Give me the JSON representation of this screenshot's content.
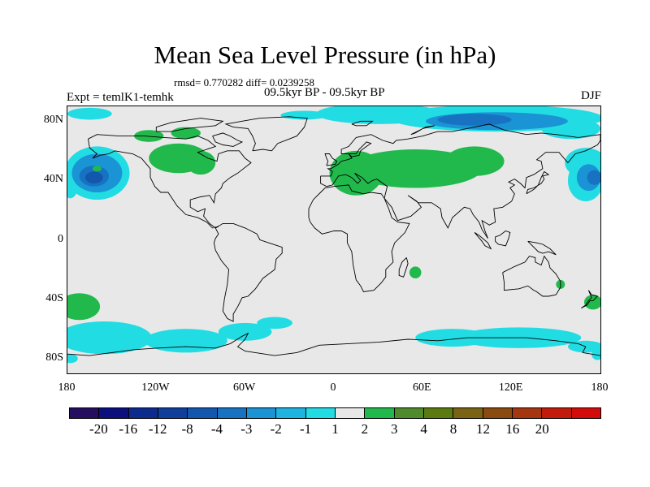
{
  "chart_data": {
    "type": "heatmap",
    "title": "Mean Sea Level Pressure (in hPa)",
    "stats_text": "rmsd= 0.770282 diff= 0.0239258",
    "period": "09.5kyr BP - 09.5kyr BP",
    "experiment": "Expt = temlK1-temhk",
    "season": "DJF",
    "x_ticks": [
      "180",
      "120W",
      "60W",
      "0",
      "60E",
      "120E",
      "180"
    ],
    "x_tick_values": [
      -180,
      -120,
      -60,
      0,
      60,
      120,
      180
    ],
    "y_ticks": [
      "80N",
      "40N",
      "0",
      "40S",
      "80S"
    ],
    "y_tick_values": [
      80,
      40,
      0,
      -40,
      -80
    ],
    "xlim": [
      -180,
      180
    ],
    "ylim": [
      -90,
      90
    ],
    "colorbar_levels": [
      "-20",
      "-16",
      "-12",
      "-8",
      "-4",
      "-3",
      "-2",
      "-1",
      "1",
      "2",
      "3",
      "4",
      "8",
      "12",
      "16",
      "20"
    ],
    "colorbar_colors": [
      "#250d60",
      "#0c0f7e",
      "#0d2a8e",
      "#103f9b",
      "#1256ad",
      "#1773c2",
      "#1a94d4",
      "#1fb4e0",
      "#21dde3",
      "#e8e8e8",
      "#21b94c",
      "#4f8a2c",
      "#5b7a12",
      "#7a6315",
      "#8a4a10",
      "#a53610",
      "#c21b0c",
      "#d40b0b"
    ],
    "regions": [
      {
        "name": "north-pacific-low",
        "sign": "negative",
        "lon": -160,
        "lat": 45,
        "value": -4
      },
      {
        "name": "north-pacific-low-core",
        "sign": "negative",
        "lon": -162,
        "lat": 42,
        "value": -8
      },
      {
        "name": "arctic-siberia",
        "sign": "negative",
        "lon": 110,
        "lat": 78,
        "value": -3
      },
      {
        "name": "arctic-core",
        "sign": "negative",
        "lon": 120,
        "lat": 80,
        "value": -4
      },
      {
        "name": "northwest-pacific",
        "sign": "negative",
        "lon": 170,
        "lat": 42,
        "value": -4
      },
      {
        "name": "southern-ocean-pacific",
        "sign": "negative",
        "lon": -140,
        "lat": -65,
        "value": -1
      },
      {
        "name": "southern-ocean-indian",
        "sign": "negative",
        "lon": 110,
        "lat": -65,
        "value": -1
      },
      {
        "name": "eurasia-high",
        "sign": "positive",
        "lon": 60,
        "lat": 50,
        "value": 1
      },
      {
        "name": "europe-high",
        "sign": "positive",
        "lon": 5,
        "lat": 48,
        "value": 1
      },
      {
        "name": "north-america-high",
        "sign": "positive",
        "lon": -100,
        "lat": 57,
        "value": 1
      },
      {
        "name": "south-pacific-high",
        "sign": "positive",
        "lon": -170,
        "lat": -45,
        "value": 1
      },
      {
        "name": "south-indian-high",
        "sign": "positive",
        "lon": 58,
        "lat": -20,
        "value": 1
      },
      {
        "name": "australia-high",
        "sign": "positive",
        "lon": 153,
        "lat": -30,
        "value": 1
      },
      {
        "name": "south-pacific-west-high",
        "sign": "positive",
        "lon": 175,
        "lat": -42,
        "value": 1
      }
    ]
  }
}
